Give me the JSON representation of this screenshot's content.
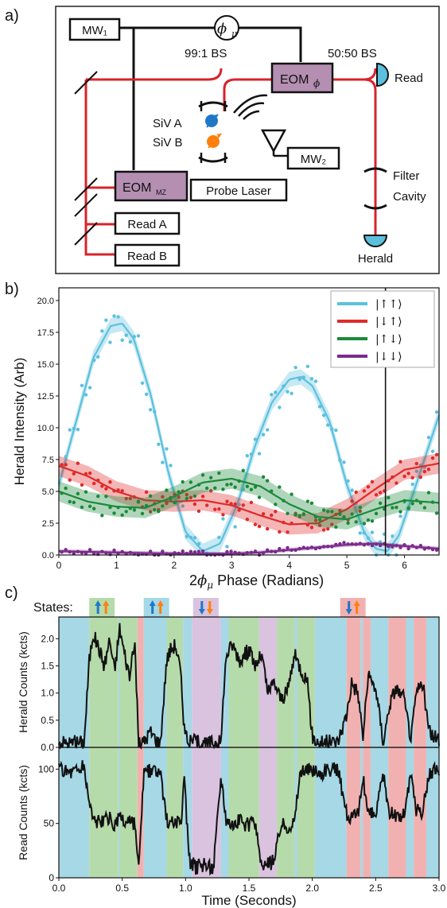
{
  "panel_a": {
    "label": "a)",
    "mw1": "MW₁",
    "mw2": "MW₂",
    "phase": "ϕ",
    "phase_sub": "μ",
    "bs_991": "99:1 BS",
    "bs_5050": "50:50 BS",
    "eom_phi": "EOM",
    "eom_phi_sub": "ϕ",
    "read": "Read",
    "siv_a": "SiV A",
    "siv_b": "SiV B",
    "eom_mz": "EOM",
    "eom_mz_sub": "MZ",
    "probe_laser": "Probe Laser",
    "filter": "Filter",
    "cavity": "Cavity",
    "read_a": "Read A",
    "read_b": "Read B",
    "herald": "Herald",
    "colors": {
      "laser": "#d8232a",
      "eom": "#b48fb2",
      "siv_a": "#1f77c8",
      "siv_b": "#ff7f0e",
      "detector": "#5bc0de"
    }
  },
  "panel_b": {
    "label": "b)",
    "ylabel": "Herald Intensity (Arb)",
    "xlabel_prefix": "2",
    "xlabel_sym": "ϕ",
    "xlabel_sub": "μ",
    "xlabel_suffix": " Phase (Radians)",
    "yticks": [
      "0.0",
      "2.5",
      "5.0",
      "7.5",
      "10.0",
      "12.5",
      "15.0",
      "17.5",
      "20.0"
    ],
    "xticks": [
      "0",
      "1",
      "2",
      "3",
      "4",
      "5",
      "6"
    ]
  },
  "panel_c": {
    "label": "c)",
    "states_label": "States:",
    "top_ylabel": "Herald Counts (kcts)",
    "bottom_ylabel": "Read Counts (kcts)",
    "xlabel": "Time (Seconds)",
    "top_yticks": [
      "0.0",
      "0.5",
      "1.0",
      "1.5",
      "2.0"
    ],
    "bottom_yticks": [
      "0",
      "50",
      "100"
    ],
    "xticks": [
      "0.0",
      "0.5",
      "1.0",
      "1.5",
      "2.0",
      "2.5",
      "3.0"
    ]
  },
  "chart_data": [
    {
      "type": "line",
      "ylim": [
        0,
        21
      ],
      "xlim": [
        0,
        6.6
      ],
      "marker_line_x": 5.67,
      "legend_placement": "top-right",
      "series": [
        {
          "name": "|↑↑⟩",
          "color": "#5bc0de",
          "x": [
            0,
            0.3,
            0.6,
            0.9,
            1.1,
            1.3,
            1.6,
            1.9,
            2.2,
            2.5,
            2.8,
            3.1,
            3.4,
            3.7,
            4.0,
            4.2,
            4.4,
            4.7,
            5.0,
            5.3,
            5.5,
            5.7,
            5.9,
            6.2,
            6.6
          ],
          "y": [
            5.5,
            10.5,
            15.5,
            18.0,
            18.2,
            17.0,
            12.5,
            6.5,
            1.8,
            0.3,
            0.9,
            4.0,
            8.5,
            12.0,
            13.8,
            14.0,
            13.3,
            10.5,
            5.5,
            1.8,
            0.5,
            0.3,
            1.5,
            5.5,
            11.0
          ]
        },
        {
          "name": "|↓↑⟩",
          "color": "#e02a2a",
          "x": [
            0,
            0.5,
            1.0,
            1.5,
            2.0,
            2.5,
            3.0,
            3.5,
            4.0,
            4.5,
            5.0,
            5.5,
            6.0,
            6.6
          ],
          "y": [
            7.0,
            6.2,
            5.0,
            4.3,
            4.2,
            4.3,
            3.9,
            3.1,
            2.4,
            2.5,
            3.6,
            5.2,
            6.7,
            7.2
          ]
        },
        {
          "name": "|↑↓⟩",
          "color": "#1a8a3a",
          "x": [
            0,
            0.5,
            1.0,
            1.5,
            2.0,
            2.5,
            3.0,
            3.5,
            4.0,
            4.5,
            5.0,
            5.5,
            6.0,
            6.6
          ],
          "y": [
            5.0,
            4.2,
            3.8,
            3.7,
            4.6,
            5.7,
            6.0,
            5.4,
            4.0,
            3.0,
            2.8,
            3.6,
            4.3,
            4.1
          ]
        },
        {
          "name": "|↓↓⟩",
          "color": "#7b2a8c",
          "x": [
            0,
            0.5,
            1.0,
            1.5,
            2.0,
            2.5,
            3.0,
            3.5,
            4.0,
            4.5,
            5.0,
            5.5,
            6.0,
            6.6
          ],
          "y": [
            0.3,
            0.25,
            0.2,
            0.15,
            0.12,
            0.1,
            0.1,
            0.2,
            0.4,
            0.6,
            0.8,
            0.9,
            0.7,
            0.5
          ]
        }
      ]
    },
    {
      "type": "line",
      "title": "",
      "xlim": [
        0,
        3.0
      ],
      "top_ylim": [
        0,
        2.4
      ],
      "bottom_ylim": [
        0,
        120
      ],
      "state_colors": {
        "uu": "#a6d8e6",
        "ud": "#b6dbaa",
        "du": "#f2b1b1",
        "dd": "#d9c3df"
      },
      "state_bands": [
        {
          "start": 0.0,
          "end": 0.24,
          "state": "uu"
        },
        {
          "start": 0.24,
          "end": 0.47,
          "state": "ud"
        },
        {
          "start": 0.47,
          "end": 0.48,
          "state": "uu"
        },
        {
          "start": 0.48,
          "end": 0.62,
          "state": "ud"
        },
        {
          "start": 0.62,
          "end": 0.67,
          "state": "du"
        },
        {
          "start": 0.67,
          "end": 0.85,
          "state": "uu"
        },
        {
          "start": 0.85,
          "end": 0.98,
          "state": "ud"
        },
        {
          "start": 0.98,
          "end": 1.05,
          "state": "uu"
        },
        {
          "start": 1.05,
          "end": 1.28,
          "state": "dd"
        },
        {
          "start": 1.28,
          "end": 1.34,
          "state": "uu"
        },
        {
          "start": 1.34,
          "end": 1.58,
          "state": "ud"
        },
        {
          "start": 1.58,
          "end": 1.72,
          "state": "dd"
        },
        {
          "start": 1.72,
          "end": 1.86,
          "state": "ud"
        },
        {
          "start": 1.86,
          "end": 1.88,
          "state": "uu"
        },
        {
          "start": 1.88,
          "end": 2.02,
          "state": "ud"
        },
        {
          "start": 2.02,
          "end": 2.27,
          "state": "uu"
        },
        {
          "start": 2.27,
          "end": 2.38,
          "state": "du"
        },
        {
          "start": 2.38,
          "end": 2.4,
          "state": "uu"
        },
        {
          "start": 2.4,
          "end": 2.46,
          "state": "du"
        },
        {
          "start": 2.46,
          "end": 2.6,
          "state": "uu"
        },
        {
          "start": 2.6,
          "end": 2.74,
          "state": "du"
        },
        {
          "start": 2.74,
          "end": 2.8,
          "state": "uu"
        },
        {
          "start": 2.8,
          "end": 2.9,
          "state": "du"
        },
        {
          "start": 2.9,
          "end": 3.0,
          "state": "uu"
        }
      ],
      "herald_counts": {
        "x": [
          0,
          0.1,
          0.2,
          0.24,
          0.27,
          0.32,
          0.36,
          0.4,
          0.44,
          0.48,
          0.52,
          0.56,
          0.6,
          0.63,
          0.67,
          0.72,
          0.8,
          0.85,
          0.88,
          0.92,
          0.96,
          0.99,
          1.03,
          1.08,
          1.15,
          1.22,
          1.28,
          1.32,
          1.37,
          1.43,
          1.5,
          1.55,
          1.6,
          1.65,
          1.7,
          1.75,
          1.8,
          1.86,
          1.9,
          1.96,
          2.0,
          2.04,
          2.1,
          2.2,
          2.27,
          2.31,
          2.36,
          2.4,
          2.44,
          2.5,
          2.56,
          2.61,
          2.66,
          2.72,
          2.78,
          2.82,
          2.87,
          2.92,
          3.0
        ],
        "y": [
          0.1,
          0.08,
          0.1,
          1.6,
          2.1,
          1.8,
          1.5,
          2.0,
          1.4,
          2.2,
          1.7,
          1.3,
          1.9,
          0.05,
          0.1,
          0.3,
          0.05,
          1.6,
          1.8,
          1.9,
          1.4,
          0.3,
          0.1,
          0.1,
          0.05,
          0.1,
          0.1,
          1.7,
          1.9,
          1.6,
          1.8,
          1.5,
          1.7,
          1.0,
          1.2,
          0.9,
          1.0,
          1.7,
          1.5,
          1.2,
          0.2,
          0.1,
          0.1,
          0.1,
          0.6,
          1.2,
          1.0,
          0.2,
          1.3,
          1.1,
          0.1,
          0.8,
          1.1,
          0.9,
          0.15,
          1.0,
          1.2,
          0.3,
          0.1
        ]
      },
      "read_counts": {
        "x": [
          0,
          0.1,
          0.2,
          0.24,
          0.27,
          0.32,
          0.36,
          0.4,
          0.44,
          0.48,
          0.52,
          0.56,
          0.6,
          0.63,
          0.67,
          0.72,
          0.8,
          0.85,
          0.88,
          0.92,
          0.96,
          0.99,
          1.03,
          1.08,
          1.15,
          1.22,
          1.28,
          1.32,
          1.37,
          1.43,
          1.5,
          1.55,
          1.6,
          1.65,
          1.7,
          1.75,
          1.8,
          1.86,
          1.9,
          1.96,
          2.0,
          2.04,
          2.1,
          2.2,
          2.27,
          2.31,
          2.36,
          2.4,
          2.44,
          2.5,
          2.56,
          2.61,
          2.66,
          2.72,
          2.78,
          2.82,
          2.87,
          2.92,
          3.0
        ],
        "y": [
          100,
          98,
          102,
          70,
          55,
          50,
          52,
          55,
          48,
          55,
          50,
          52,
          48,
          5,
          95,
          98,
          95,
          55,
          50,
          52,
          48,
          90,
          15,
          10,
          12,
          10,
          95,
          55,
          50,
          52,
          48,
          50,
          10,
          12,
          15,
          50,
          48,
          52,
          95,
          100,
          100,
          95,
          98,
          100,
          60,
          55,
          58,
          92,
          60,
          58,
          95,
          60,
          55,
          58,
          95,
          62,
          60,
          95,
          100
        ]
      }
    }
  ]
}
